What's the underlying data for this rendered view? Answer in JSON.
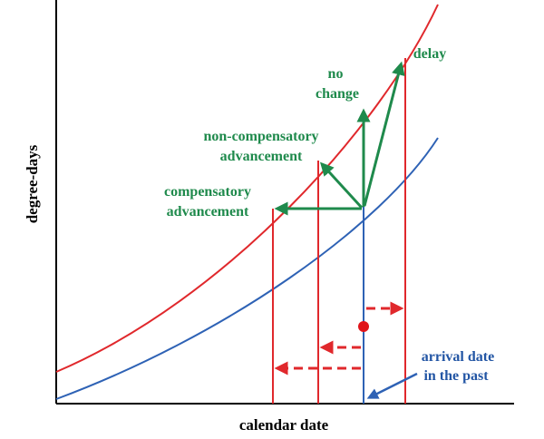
{
  "axes": {
    "xlabel": "calendar date",
    "ylabel": "degree-days"
  },
  "labels": {
    "delay": "delay",
    "no_change_1": "no",
    "no_change_2": "change",
    "non_comp_1": "non-compensatory",
    "non_comp_2": "advancement",
    "comp_1": "compensatory",
    "comp_2": "advancement",
    "arrival_1": "arrival date",
    "arrival_2": "in the past"
  },
  "colors": {
    "red": "#e0282c",
    "blue": "#2e62b5",
    "green": "#1f8a4c",
    "axis": "#000000",
    "dot": "#e0151b"
  }
}
